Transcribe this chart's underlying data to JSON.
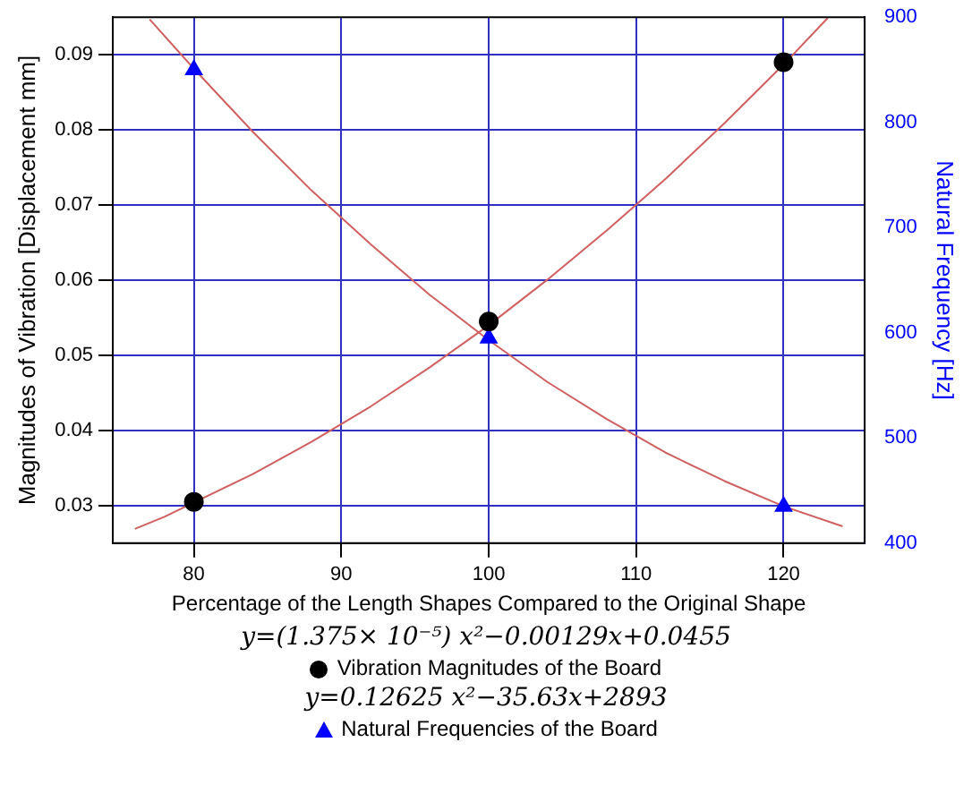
{
  "chart_data": {
    "type": "scatter",
    "xlabel": "Percentage of the Length Shapes Compared to the Original Shape",
    "ylabel": "Magnitudes of Vibration [Displacement mm]",
    "y2label": "Natural Frequency [Hz]",
    "x": [
      80,
      100,
      120
    ],
    "series": [
      {
        "name": "Vibration Magnitudes of the Board",
        "type": "scatter",
        "color": "#000000",
        "marker": "circle",
        "values": [
          0.0305,
          0.0545,
          0.089
        ]
      },
      {
        "name": "Natural Frequencies of the Board",
        "type": "scatter",
        "color": "#0000ff",
        "marker": "triangle",
        "axis": "y2",
        "values": [
          850,
          595,
          435
        ]
      },
      {
        "type": "line",
        "color": "#d06060",
        "marker": "none",
        "x": [
          76,
          78,
          84,
          88,
          92,
          96,
          100,
          104,
          108,
          112,
          116,
          120,
          123
        ],
        "values": [
          0.0269,
          0.0285,
          0.0342,
          0.0385,
          0.0432,
          0.0484,
          0.054,
          0.0601,
          0.0666,
          0.0735,
          0.0809,
          0.0887,
          0.0949
        ]
      },
      {
        "type": "line",
        "color": "#d06060",
        "marker": "none",
        "axis": "y2",
        "x": [
          77,
          80,
          84,
          88,
          92,
          96,
          100,
          104,
          108,
          112,
          116,
          120,
          124
        ],
        "values": [
          898,
          851,
          791,
          735,
          684,
          636,
          593,
          553,
          518,
          486,
          459,
          435,
          416
        ]
      }
    ],
    "xlim": [
      74.5,
      125.5
    ],
    "xticks": [
      80,
      90,
      100,
      110,
      120
    ],
    "ylim": [
      0.025,
      0.095
    ],
    "yticks": [
      0.03,
      0.04,
      0.05,
      0.06,
      0.07,
      0.08,
      0.09
    ],
    "y2lim": [
      400,
      900
    ],
    "y2ticks": [
      400,
      500,
      600,
      700,
      800,
      900
    ],
    "grid": true,
    "legend": "bottom",
    "annotations": [
      "y=(1.375× 10⁻⁵) x²−0.00129x+0.0455",
      "y=0.12625 x²−35.63x+2893"
    ]
  }
}
